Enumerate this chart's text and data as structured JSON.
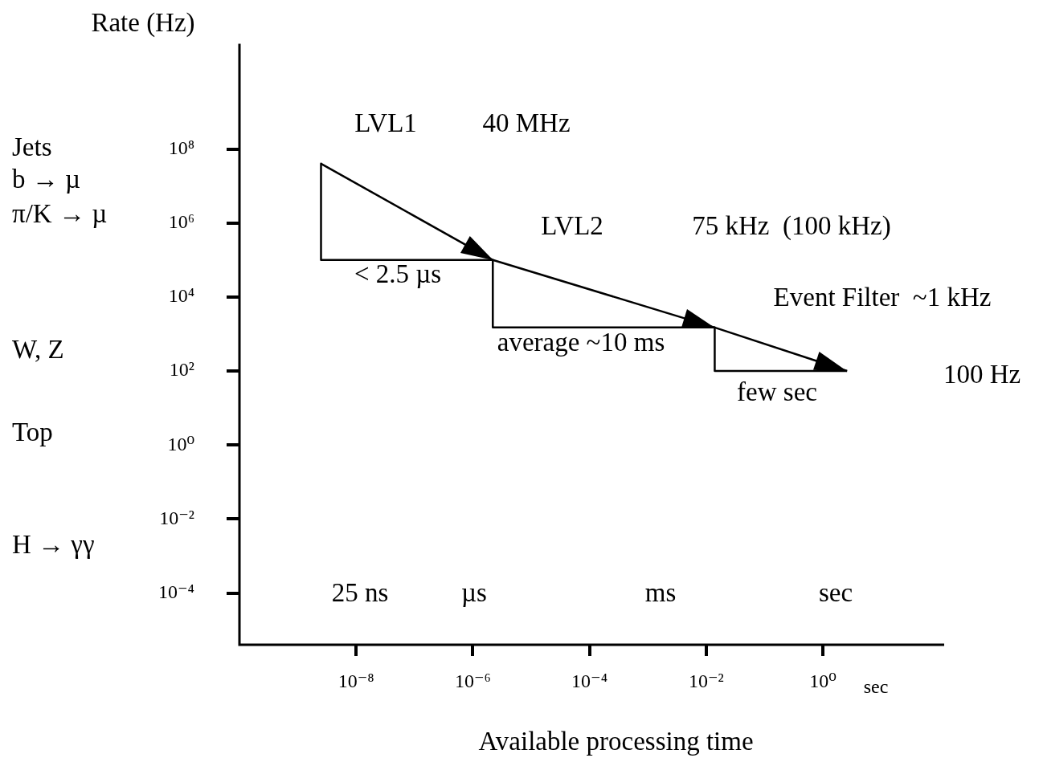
{
  "chart_data": {
    "type": "line",
    "ylabel": "Rate (Hz)",
    "xlabel": "Available processing time",
    "log": "xy",
    "grid": false,
    "legend": false,
    "marker": "none",
    "line_style": "solid",
    "xlim": [
      1e-10,
      120
    ],
    "ylim": [
      4e-06,
      70000000000.0
    ],
    "xticks": [
      {
        "value": 1e-08,
        "label": "10⁻⁸"
      },
      {
        "value": 1e-06,
        "label": "10⁻⁶"
      },
      {
        "value": 0.0001,
        "label": "10⁻⁴"
      },
      {
        "value": 0.01,
        "label": "10⁻²"
      },
      {
        "value": 1,
        "label": "10⁰"
      }
    ],
    "yticks": [
      {
        "value": 0.0001,
        "label": "10⁻⁴"
      },
      {
        "value": 0.01,
        "label": "10⁻²"
      },
      {
        "value": 1,
        "label": "10⁰"
      },
      {
        "value": 100,
        "label": "10²"
      },
      {
        "value": 10000.0,
        "label": "10⁴"
      },
      {
        "value": 1000000.0,
        "label": "10⁶"
      },
      {
        "value": 100000000.0,
        "label": "10⁸"
      }
    ],
    "series": [
      {
        "type": "line",
        "color": "#000000",
        "x": [
          2.5e-09,
          2.2e-06,
          0.014,
          2.6
        ],
        "values": [
          40000000.0,
          100000.0,
          1500,
          100
        ]
      },
      {
        "type": "line",
        "color": "#000000",
        "x": [
          2.5e-09,
          2.5e-09,
          2.2e-06
        ],
        "values": [
          40000000.0,
          100000.0,
          100000.0
        ]
      },
      {
        "type": "line",
        "color": "#000000",
        "x": [
          2.2e-06,
          2.2e-06,
          0.014
        ],
        "values": [
          100000.0,
          1500,
          1500
        ]
      },
      {
        "type": "line",
        "color": "#000000",
        "x": [
          0.014,
          0.014,
          2.6
        ],
        "values": [
          1500,
          100,
          100
        ]
      }
    ],
    "annotations": [
      "LVL1",
      "40 MHz",
      "LVL2",
      "75 kHz  (100 kHz)",
      "Event Filter  ~1 kHz",
      "100 Hz",
      "< 2.5 µs",
      "average ~10 ms",
      "few sec",
      "25 ns",
      "µs",
      "ms",
      "sec",
      "sec",
      "Jets",
      "b → µ",
      "π/K → µ",
      "W, Z",
      "Top",
      "H → γγ"
    ]
  }
}
